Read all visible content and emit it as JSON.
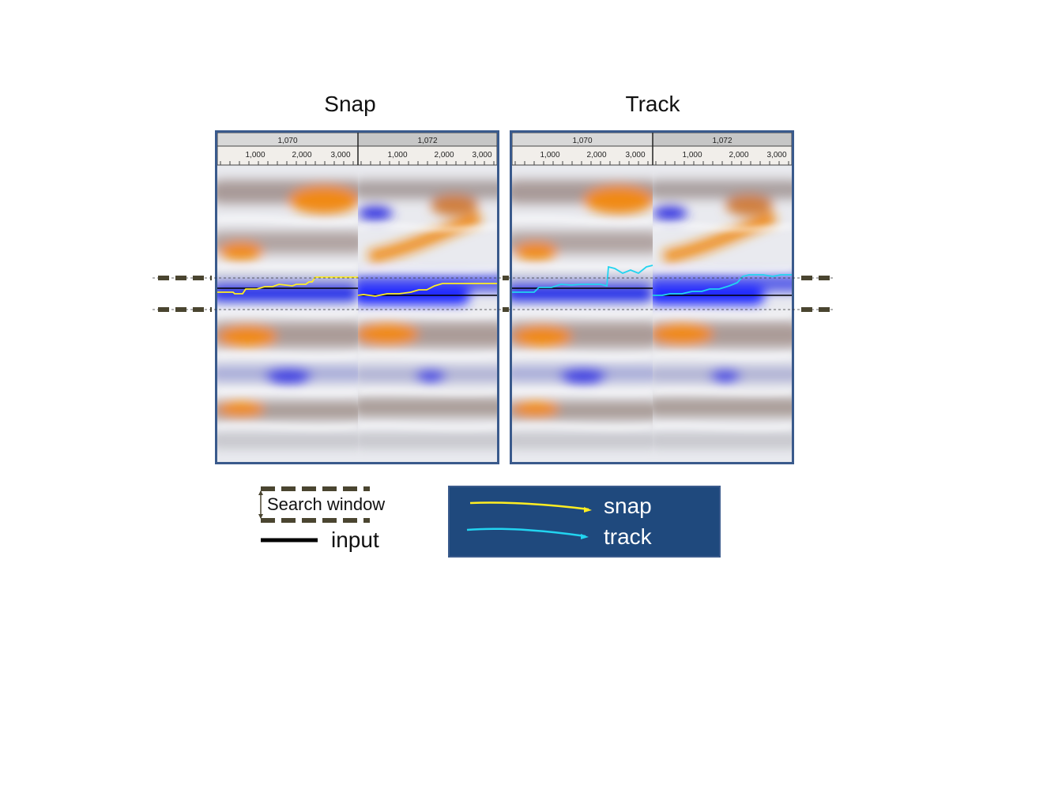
{
  "titles": {
    "snap": "Snap",
    "track": "Track"
  },
  "ruler": {
    "traces": [
      "1,070",
      "1,072"
    ],
    "ticks": [
      "1,000",
      "2,000",
      "3,000"
    ]
  },
  "legend": {
    "search_window": "Search window",
    "input": "input",
    "snap": "snap",
    "track": "track"
  },
  "colors": {
    "snap_line": "#ffee22",
    "track_line": "#22d4f0",
    "input_line": "#000000",
    "search_window": "#4a4530",
    "panel_border": "#3a5a8c",
    "legend_bg": "#1f497d",
    "positive_amplitude": "#f28a10",
    "negative_amplitude": "#1a1aff"
  }
}
